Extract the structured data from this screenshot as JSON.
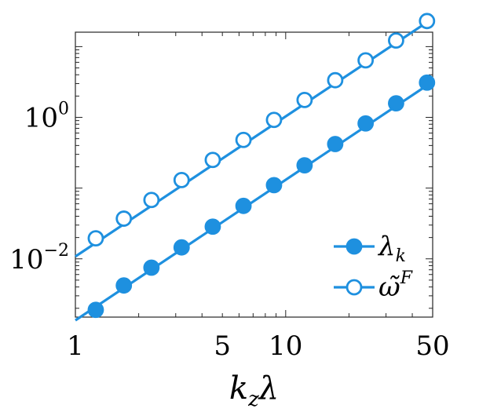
{
  "chart_data": {
    "type": "line",
    "xscale": "log",
    "yscale": "log",
    "xlim": [
      1,
      50
    ],
    "ylim": [
      0.0015,
      16
    ],
    "xticks": [
      {
        "value": 1,
        "label": "1"
      },
      {
        "value": 5,
        "label": "5"
      },
      {
        "value": 10,
        "label": "10"
      },
      {
        "value": 50,
        "label": "50"
      }
    ],
    "yticks": [
      {
        "value": 0.01,
        "base": "10",
        "exp": "−2"
      },
      {
        "value": 1,
        "base": "10",
        "exp": "0"
      }
    ],
    "xlabel": {
      "main": "k",
      "sub": "z",
      "tail": "λ"
    },
    "grid": false,
    "legend_position": "bottom-right",
    "color": "#1E90DF",
    "x": [
      1.25,
      1.7,
      2.3,
      3.2,
      4.5,
      6.3,
      8.8,
      12.3,
      17.2,
      24.0,
      33.5,
      47.0
    ],
    "series": [
      {
        "name": "λ_k",
        "legend": {
          "main": "λ",
          "sub": "k",
          "sup": ""
        },
        "marker": "filled-circle",
        "values": [
          0.0019,
          0.0042,
          0.0075,
          0.0145,
          0.0285,
          0.056,
          0.11,
          0.21,
          0.42,
          0.82,
          1.58,
          3.1
        ],
        "fit_start": [
          1,
          0.00135
        ],
        "fit_end": [
          50,
          3.2
        ]
      },
      {
        "name": "ω̃^F",
        "legend": {
          "main": "ω̃",
          "sub": "",
          "sup": "F"
        },
        "marker": "open-circle",
        "values": [
          0.0195,
          0.037,
          0.068,
          0.13,
          0.25,
          0.48,
          0.92,
          1.76,
          3.35,
          6.4,
          12.2,
          23.0
        ],
        "fit_start": [
          1,
          0.0108
        ],
        "fit_end": [
          50,
          25
        ]
      }
    ]
  }
}
